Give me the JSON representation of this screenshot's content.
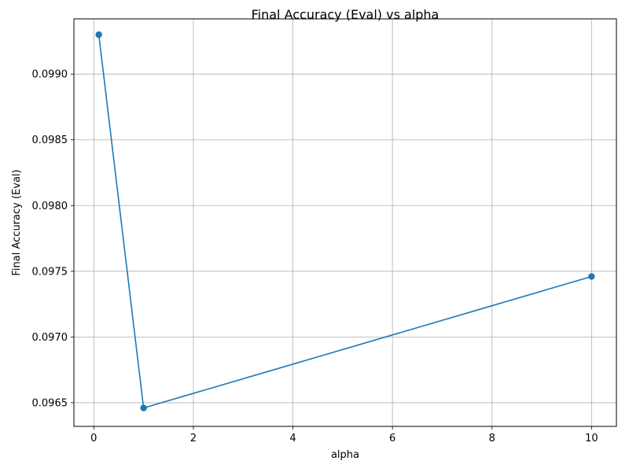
{
  "chart_data": {
    "type": "line",
    "title": "Final Accuracy (Eval) vs alpha",
    "xlabel": "alpha",
    "ylabel": "Final Accuracy (Eval)",
    "xlim": [
      -0.4,
      10.5
    ],
    "ylim": [
      0.09632,
      0.09942
    ],
    "xticks": [
      0,
      2,
      4,
      6,
      8,
      10
    ],
    "xtick_labels": [
      "0",
      "2",
      "4",
      "6",
      "8",
      "10"
    ],
    "yticks": [
      0.0965,
      0.097,
      0.0975,
      0.098,
      0.0985,
      0.099
    ],
    "ytick_labels": [
      "0.0965",
      "0.0970",
      "0.0975",
      "0.0980",
      "0.0985",
      "0.0990"
    ],
    "grid": true,
    "series": [
      {
        "x": [
          0.1,
          1,
          10
        ],
        "values": [
          0.0993,
          0.09646,
          0.09746
        ],
        "color": "#1f77b4",
        "marker": "circle"
      }
    ]
  }
}
